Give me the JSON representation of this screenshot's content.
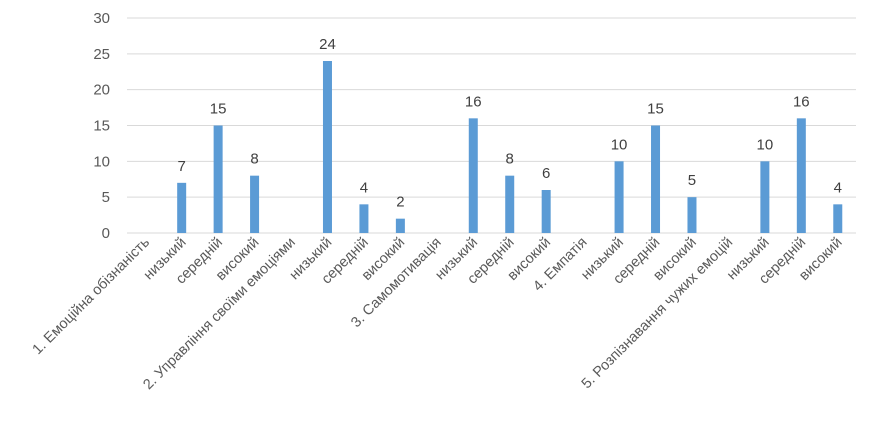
{
  "chart_data": {
    "type": "bar",
    "title": "",
    "xlabel": "",
    "ylabel": "",
    "ylim": [
      0,
      30
    ],
    "yticks": [
      0,
      5,
      10,
      15,
      20,
      25,
      30
    ],
    "grid": true,
    "legend": "none",
    "bar_color": "#5B9BD5",
    "categories": [
      "1. Емоційна обізнаність",
      "низький",
      "середній",
      "високий",
      "2. Управління своїми емоціями",
      "низький",
      "середній",
      "високий",
      "3. Самомотивація",
      "низький",
      "середній",
      "високий",
      "4. Емпатія",
      "низький",
      "середній",
      "високий",
      "5. Розпізнавання чужих емоцій",
      "низький",
      "середній",
      "високий"
    ],
    "values": [
      null,
      7,
      15,
      8,
      null,
      24,
      4,
      2,
      null,
      16,
      8,
      6,
      null,
      10,
      15,
      5,
      null,
      10,
      16,
      4
    ]
  }
}
